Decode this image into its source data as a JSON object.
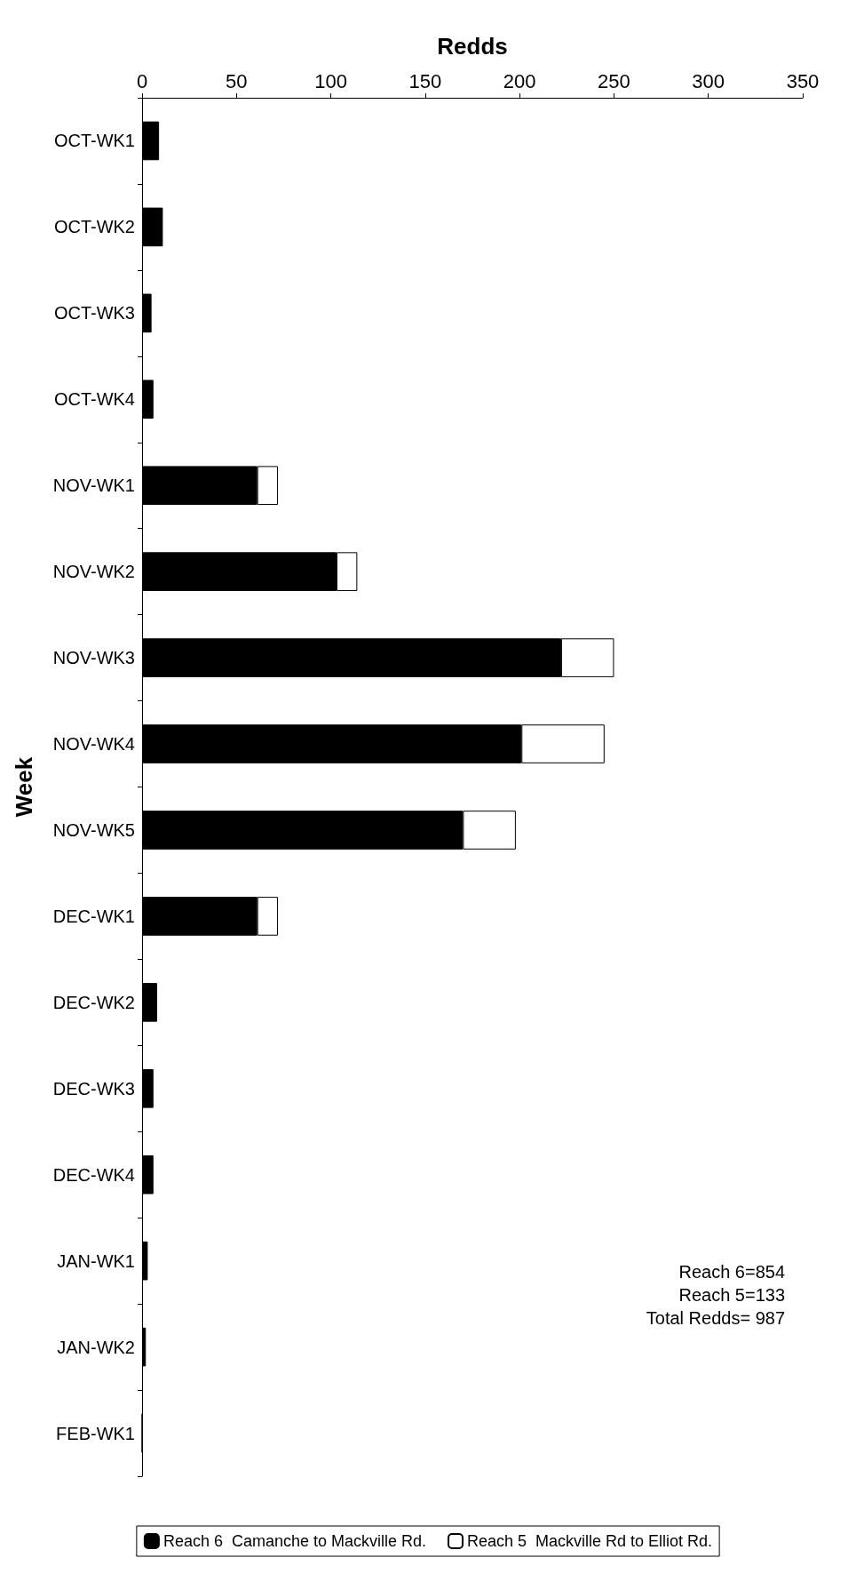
{
  "chart_data": {
    "type": "bar",
    "orientation": "horizontal",
    "stacked": true,
    "xlabel": "Redds",
    "ylabel": "Week",
    "categories": [
      "OCT-WK1",
      "OCT-WK2",
      "OCT-WK3",
      "OCT-WK4",
      "NOV-WK1",
      "NOV-WK2",
      "NOV-WK3",
      "NOV-WK4",
      "NOV-WK5",
      "DEC-WK1",
      "DEC-WK2",
      "DEC-WK3",
      "DEC-WK4",
      "JAN-WK1",
      "JAN-WK2",
      "FEB-WK1"
    ],
    "series": [
      {
        "name": "Reach 6  Camanche to Mackville Rd.",
        "color": "#000000",
        "values": [
          9,
          11,
          5,
          6,
          61,
          103,
          222,
          201,
          170,
          61,
          8,
          6,
          6,
          3,
          2,
          0
        ]
      },
      {
        "name": "Reach 5  Mackville Rd to Elliot Rd.",
        "color": "#ffffff",
        "values": [
          null,
          null,
          null,
          null,
          11,
          11,
          28,
          44,
          28,
          11,
          null,
          null,
          null,
          null,
          null,
          null
        ]
      }
    ],
    "xlim": [
      0,
      350
    ],
    "xticks": [
      0,
      50,
      100,
      150,
      200,
      250,
      300,
      350
    ],
    "grid": false,
    "legend": "bottom",
    "annotations": [
      "Reach 6=854",
      "Reach 5=133",
      "Total Redds= 987"
    ]
  }
}
